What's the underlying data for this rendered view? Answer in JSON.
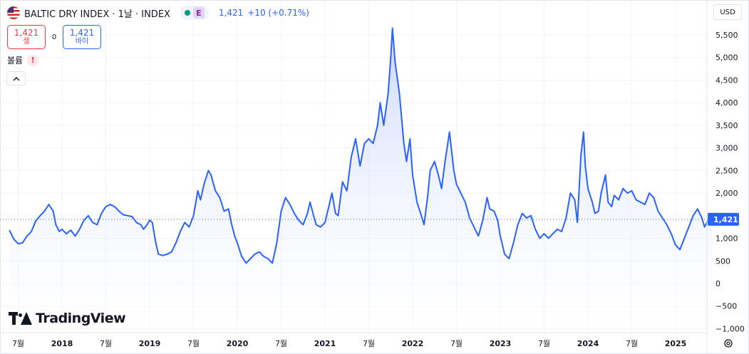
{
  "header": {
    "symbol": "BALTIC DRY INDEX · 1날 · INDEX",
    "flag_icon": "us-flag-icon",
    "status_icon": "market-status-dot-icon",
    "status_badge": "E",
    "last_price": "1,421",
    "change": "+10 (+0.71%)"
  },
  "trade": {
    "sell_price": "1,421",
    "sell_label": "셀",
    "spread": "0",
    "buy_price": "1,421",
    "buy_label": "바이"
  },
  "volume": {
    "label": "볼륨",
    "warning": "!"
  },
  "currency": "USD",
  "logo": {
    "text": "TradingView"
  },
  "colors": {
    "line": "#2962ff",
    "fill_top": "#c3d1fb",
    "fill_bottom": "#ffffff",
    "sell": "#f23645",
    "buy": "#2962ff",
    "grid": "#f0f3fa",
    "price_label_bg": "#2962ff"
  },
  "chart_data": {
    "type": "area",
    "title": "BALTIC DRY INDEX",
    "xlabel": "",
    "ylabel": "",
    "ylim": [
      -1000,
      5800
    ],
    "grid": true,
    "y_ticks": [
      -1000,
      -500,
      0,
      500,
      1000,
      1500,
      2000,
      2500,
      3000,
      3500,
      4000,
      4500,
      5000,
      5500
    ],
    "y_tick_labels": [
      "−1,000",
      "−500",
      "0",
      "500",
      "1,000",
      "1,500",
      "2,000",
      "2,500",
      "3,000",
      "3,500",
      "4,000",
      "4,500",
      "5,000",
      "5,500"
    ],
    "x_ticks": [
      {
        "t": 2017.5,
        "label": "7월"
      },
      {
        "t": 2018.0,
        "label": "2018"
      },
      {
        "t": 2018.5,
        "label": "7월"
      },
      {
        "t": 2019.0,
        "label": "2019"
      },
      {
        "t": 2019.5,
        "label": "7월"
      },
      {
        "t": 2020.0,
        "label": "2020"
      },
      {
        "t": 2020.5,
        "label": "7월"
      },
      {
        "t": 2021.0,
        "label": "2021"
      },
      {
        "t": 2021.5,
        "label": "7월"
      },
      {
        "t": 2022.0,
        "label": "2022"
      },
      {
        "t": 2022.5,
        "label": "7월"
      },
      {
        "t": 2023.0,
        "label": "2023"
      },
      {
        "t": 2023.5,
        "label": "7월"
      },
      {
        "t": 2024.0,
        "label": "2024"
      },
      {
        "t": 2024.5,
        "label": "7월"
      },
      {
        "t": 2025.0,
        "label": "2025"
      }
    ],
    "x_range": [
      2017.4,
      2025.75
    ],
    "current_value": 1421,
    "current_label": "1,421",
    "series": [
      {
        "values": [
          [
            2017.4,
            1180
          ],
          [
            2017.45,
            980
          ],
          [
            2017.5,
            880
          ],
          [
            2017.55,
            900
          ],
          [
            2017.6,
            1050
          ],
          [
            2017.65,
            1150
          ],
          [
            2017.7,
            1380
          ],
          [
            2017.75,
            1500
          ],
          [
            2017.8,
            1600
          ],
          [
            2017.85,
            1750
          ],
          [
            2017.9,
            1600
          ],
          [
            2017.93,
            1300
          ],
          [
            2017.97,
            1150
          ],
          [
            2018.0,
            1200
          ],
          [
            2018.05,
            1100
          ],
          [
            2018.1,
            1180
          ],
          [
            2018.15,
            1050
          ],
          [
            2018.2,
            1200
          ],
          [
            2018.25,
            1400
          ],
          [
            2018.3,
            1500
          ],
          [
            2018.35,
            1350
          ],
          [
            2018.4,
            1300
          ],
          [
            2018.45,
            1550
          ],
          [
            2018.5,
            1700
          ],
          [
            2018.55,
            1750
          ],
          [
            2018.6,
            1700
          ],
          [
            2018.65,
            1600
          ],
          [
            2018.7,
            1520
          ],
          [
            2018.75,
            1500
          ],
          [
            2018.8,
            1480
          ],
          [
            2018.85,
            1350
          ],
          [
            2018.9,
            1300
          ],
          [
            2018.93,
            1200
          ],
          [
            2018.97,
            1300
          ],
          [
            2019.0,
            1400
          ],
          [
            2019.03,
            1350
          ],
          [
            2019.07,
            900
          ],
          [
            2019.1,
            650
          ],
          [
            2019.15,
            620
          ],
          [
            2019.2,
            650
          ],
          [
            2019.25,
            700
          ],
          [
            2019.3,
            900
          ],
          [
            2019.35,
            1150
          ],
          [
            2019.4,
            1350
          ],
          [
            2019.45,
            1250
          ],
          [
            2019.5,
            1500
          ],
          [
            2019.55,
            2050
          ],
          [
            2019.58,
            1850
          ],
          [
            2019.62,
            2200
          ],
          [
            2019.67,
            2500
          ],
          [
            2019.7,
            2400
          ],
          [
            2019.75,
            2050
          ],
          [
            2019.8,
            1900
          ],
          [
            2019.85,
            1600
          ],
          [
            2019.9,
            1650
          ],
          [
            2019.93,
            1350
          ],
          [
            2019.97,
            1050
          ],
          [
            2020.0,
            900
          ],
          [
            2020.05,
            600
          ],
          [
            2020.1,
            450
          ],
          [
            2020.15,
            550
          ],
          [
            2020.2,
            650
          ],
          [
            2020.25,
            700
          ],
          [
            2020.3,
            600
          ],
          [
            2020.35,
            550
          ],
          [
            2020.4,
            450
          ],
          [
            2020.45,
            900
          ],
          [
            2020.5,
            1600
          ],
          [
            2020.55,
            1900
          ],
          [
            2020.6,
            1750
          ],
          [
            2020.65,
            1550
          ],
          [
            2020.7,
            1400
          ],
          [
            2020.75,
            1300
          ],
          [
            2020.8,
            1550
          ],
          [
            2020.83,
            1800
          ],
          [
            2020.87,
            1500
          ],
          [
            2020.9,
            1300
          ],
          [
            2020.95,
            1250
          ],
          [
            2021.0,
            1350
          ],
          [
            2021.05,
            1750
          ],
          [
            2021.08,
            2000
          ],
          [
            2021.12,
            1550
          ],
          [
            2021.15,
            1500
          ],
          [
            2021.2,
            2250
          ],
          [
            2021.25,
            2050
          ],
          [
            2021.3,
            2800
          ],
          [
            2021.35,
            3200
          ],
          [
            2021.4,
            2600
          ],
          [
            2021.45,
            3100
          ],
          [
            2021.5,
            3200
          ],
          [
            2021.55,
            3100
          ],
          [
            2021.6,
            3500
          ],
          [
            2021.63,
            4000
          ],
          [
            2021.67,
            3500
          ],
          [
            2021.72,
            4200
          ],
          [
            2021.75,
            5000
          ],
          [
            2021.77,
            5650
          ],
          [
            2021.8,
            4900
          ],
          [
            2021.85,
            4200
          ],
          [
            2021.9,
            3100
          ],
          [
            2021.93,
            2700
          ],
          [
            2021.97,
            3200
          ],
          [
            2022.0,
            2400
          ],
          [
            2022.05,
            1800
          ],
          [
            2022.1,
            1500
          ],
          [
            2022.13,
            1300
          ],
          [
            2022.17,
            1900
          ],
          [
            2022.2,
            2500
          ],
          [
            2022.25,
            2700
          ],
          [
            2022.3,
            2350
          ],
          [
            2022.33,
            2100
          ],
          [
            2022.37,
            2700
          ],
          [
            2022.42,
            3350
          ],
          [
            2022.47,
            2500
          ],
          [
            2022.5,
            2200
          ],
          [
            2022.55,
            2000
          ],
          [
            2022.6,
            1800
          ],
          [
            2022.65,
            1450
          ],
          [
            2022.7,
            1250
          ],
          [
            2022.75,
            1050
          ],
          [
            2022.8,
            1400
          ],
          [
            2022.85,
            1900
          ],
          [
            2022.88,
            1650
          ],
          [
            2022.93,
            1600
          ],
          [
            2022.97,
            1400
          ],
          [
            2023.0,
            1050
          ],
          [
            2023.05,
            650
          ],
          [
            2023.1,
            550
          ],
          [
            2023.15,
            900
          ],
          [
            2023.2,
            1300
          ],
          [
            2023.25,
            1550
          ],
          [
            2023.3,
            1450
          ],
          [
            2023.35,
            1500
          ],
          [
            2023.4,
            1200
          ],
          [
            2023.45,
            1000
          ],
          [
            2023.5,
            1100
          ],
          [
            2023.55,
            1000
          ],
          [
            2023.6,
            1100
          ],
          [
            2023.65,
            1200
          ],
          [
            2023.7,
            1150
          ],
          [
            2023.75,
            1450
          ],
          [
            2023.8,
            2000
          ],
          [
            2023.85,
            1850
          ],
          [
            2023.88,
            1350
          ],
          [
            2023.92,
            2850
          ],
          [
            2023.95,
            3350
          ],
          [
            2023.97,
            2600
          ],
          [
            2024.0,
            2100
          ],
          [
            2024.05,
            1800
          ],
          [
            2024.08,
            1550
          ],
          [
            2024.12,
            1600
          ],
          [
            2024.15,
            2000
          ],
          [
            2024.2,
            2400
          ],
          [
            2024.23,
            1800
          ],
          [
            2024.27,
            1700
          ],
          [
            2024.3,
            1950
          ],
          [
            2024.35,
            1850
          ],
          [
            2024.4,
            2100
          ],
          [
            2024.45,
            2000
          ],
          [
            2024.5,
            2050
          ],
          [
            2024.55,
            1850
          ],
          [
            2024.6,
            1800
          ],
          [
            2024.65,
            1750
          ],
          [
            2024.7,
            2000
          ],
          [
            2024.75,
            1900
          ],
          [
            2024.8,
            1600
          ],
          [
            2024.85,
            1450
          ],
          [
            2024.9,
            1300
          ],
          [
            2024.95,
            1100
          ],
          [
            2025.0,
            850
          ],
          [
            2025.05,
            750
          ],
          [
            2025.1,
            1000
          ],
          [
            2025.15,
            1250
          ],
          [
            2025.2,
            1500
          ],
          [
            2025.25,
            1650
          ],
          [
            2025.3,
            1450
          ],
          [
            2025.33,
            1250
          ],
          [
            2025.37,
            1400
          ],
          [
            2025.4,
            1411
          ],
          [
            2025.42,
            1421
          ]
        ]
      }
    ]
  }
}
